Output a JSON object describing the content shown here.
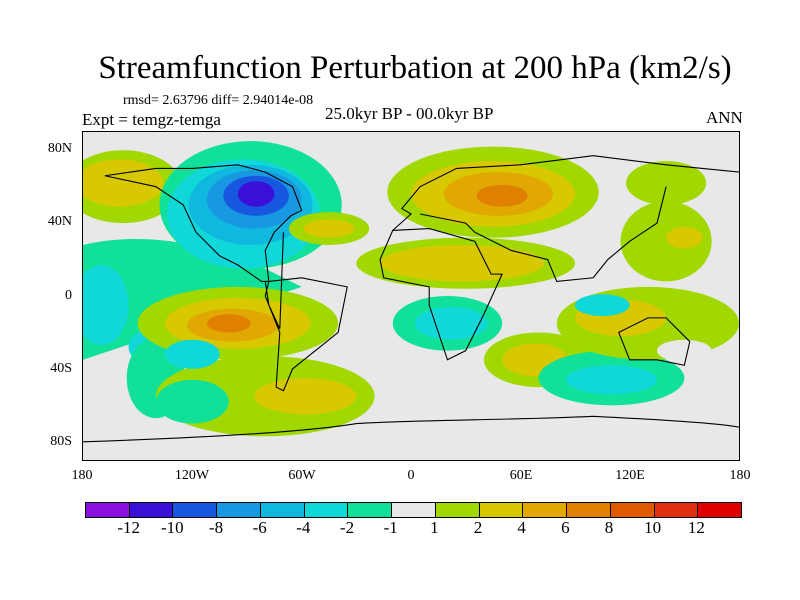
{
  "title": "Streamfunction Perturbation at 200 hPa (km2/s)",
  "stats": "rmsd= 2.63796 diff= 2.94014e-08",
  "left_label": "Expt = temgz-temga",
  "center_label": "25.0kyr BP - 00.0kyr BP",
  "right_label": "ANN",
  "y_ticks": [
    {
      "lat": 80,
      "label": "80N"
    },
    {
      "lat": 40,
      "label": "40N"
    },
    {
      "lat": 0,
      "label": "0"
    },
    {
      "lat": -40,
      "label": "40S"
    },
    {
      "lat": -80,
      "label": "80S"
    }
  ],
  "x_ticks": [
    {
      "lon": -180,
      "label": "180"
    },
    {
      "lon": -120,
      "label": "120W"
    },
    {
      "lon": -60,
      "label": "60W"
    },
    {
      "lon": 0,
      "label": "0"
    },
    {
      "lon": 60,
      "label": "60E"
    },
    {
      "lon": 120,
      "label": "120E"
    },
    {
      "lon": 180,
      "label": "180"
    }
  ],
  "colorbar": {
    "colors": [
      "#8a10e0",
      "#3a10d8",
      "#1858e0",
      "#1898e0",
      "#10b8e0",
      "#10d8d8",
      "#10e098",
      "#e8e8e8",
      "#a0d800",
      "#d8c800",
      "#e0a800",
      "#e08000",
      "#e05800",
      "#e03010",
      "#e00000"
    ],
    "labels": [
      "-12",
      "-10",
      "-8",
      "-6",
      "-4",
      "-2",
      "-1",
      "1",
      "2",
      "4",
      "6",
      "8",
      "10",
      "12"
    ]
  }
}
